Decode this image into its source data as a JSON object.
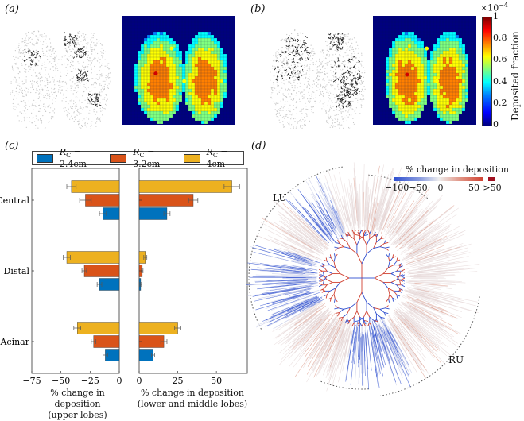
{
  "panels": {
    "a": "(a)",
    "b": "(b)",
    "c": "(c)",
    "d": "(d)"
  },
  "colorbar": {
    "label": "Deposited fraction",
    "exponent": "×10",
    "exponent_power": "−4",
    "ticks": [
      "1",
      "0.8",
      "0.6",
      "0.4",
      "0.2",
      "0"
    ]
  },
  "heatmap_palette": [
    "#00007f",
    "#0000ff",
    "#007fff",
    "#00ffff",
    "#7fff7f",
    "#ffff00",
    "#ff7f00",
    "#ff0000",
    "#7f0000"
  ],
  "chart_data": [
    {
      "type": "bar",
      "orientation": "horizontal",
      "title": "",
      "xlabel": "% change in deposition",
      "xlabel2": "(upper lobes)",
      "categories": [
        "Central",
        "Distal",
        "Acinar"
      ],
      "xlim": [
        -75,
        0
      ],
      "xticks": [
        "−75",
        "−50",
        "−25",
        "0"
      ],
      "series": [
        {
          "name": "R_C = 2.4cm",
          "color": "#0072bd",
          "values": [
            -14,
            -17,
            -12
          ],
          "errors": [
            3,
            2,
            2
          ]
        },
        {
          "name": "R_C = 3.2cm",
          "color": "#d95319",
          "values": [
            -29,
            -30,
            -22
          ],
          "errors": [
            5,
            2,
            2
          ]
        },
        {
          "name": "R_C = 4cm",
          "color": "#edb120",
          "values": [
            -41,
            -45,
            -36
          ],
          "errors": [
            4,
            3,
            3
          ]
        }
      ]
    },
    {
      "type": "bar",
      "orientation": "horizontal",
      "title": "",
      "xlabel": "% change in deposition",
      "xlabel2": "(lower and middle lobes)",
      "categories": [
        "Central",
        "Distal",
        "Acinar"
      ],
      "xlim": [
        0,
        70
      ],
      "xticks": [
        "0",
        "25",
        "50"
      ],
      "series": [
        {
          "name": "R_C = 2.4cm",
          "color": "#0072bd",
          "values": [
            18,
            1,
            9
          ],
          "errors": [
            2,
            0.5,
            1
          ]
        },
        {
          "name": "R_C = 3.2cm",
          "color": "#d95319",
          "values": [
            35,
            2,
            16
          ],
          "errors": [
            3,
            0.5,
            2
          ]
        },
        {
          "name": "R_C = 4cm",
          "color": "#edb120",
          "values": [
            60,
            4,
            25
          ],
          "errors": [
            5,
            1,
            2
          ]
        }
      ]
    }
  ],
  "legend": [
    {
      "r": "R",
      "sub": "C",
      "text": " = 2.4cm"
    },
    {
      "r": "R",
      "sub": "C",
      "text": " = 3.2cm"
    },
    {
      "r": "R",
      "sub": "C",
      "text": " = 4cm"
    }
  ],
  "panel_d": {
    "title": "% change in deposition",
    "ticks": [
      "−100",
      "−50",
      "0",
      "50",
      ">50"
    ],
    "lobes": [
      "LU",
      "RU"
    ],
    "colors": {
      "negative": "#3050d0",
      "neutral": "#eeeeee",
      "positive": "#d04030",
      "over": "#a01020"
    }
  }
}
